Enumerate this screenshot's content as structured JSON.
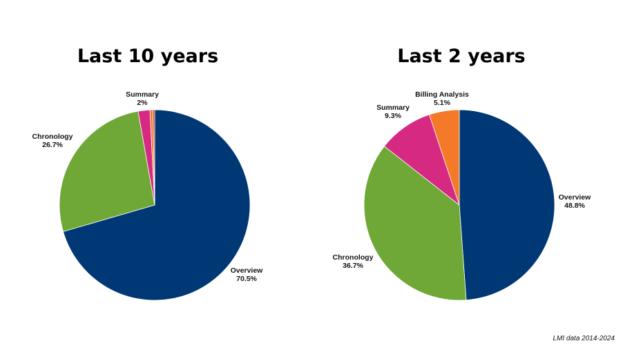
{
  "chart_data": [
    {
      "type": "pie",
      "title": "Last 10 years",
      "slices": [
        {
          "label": "Overview",
          "value": 70.5,
          "display": "70.5%",
          "color": "#003876",
          "show_label": true
        },
        {
          "label": "Chronology",
          "value": 26.7,
          "display": "26.7%",
          "color": "#6fa837",
          "show_label": true
        },
        {
          "label": "Summary",
          "value": 2.0,
          "display": "2%",
          "color": "#d62a82",
          "show_label": true
        },
        {
          "label": "",
          "value": 0.5,
          "display": "",
          "color": "#f47a2a",
          "show_label": false
        },
        {
          "label": "",
          "value": 0.3,
          "display": "",
          "color": "#c0392b",
          "show_label": false
        }
      ]
    },
    {
      "type": "pie",
      "title": "Last 2 years",
      "slices": [
        {
          "label": "Overview",
          "value": 48.8,
          "display": "48.8%",
          "color": "#003876",
          "show_label": true
        },
        {
          "label": "Chronology",
          "value": 36.7,
          "display": "36.7%",
          "color": "#6fa837",
          "show_label": true
        },
        {
          "label": "Summary",
          "value": 9.3,
          "display": "9.3%",
          "color": "#d62a82",
          "show_label": true
        },
        {
          "label": "Billing Analysis",
          "value": 5.1,
          "display": "5.1%",
          "color": "#f47a2a",
          "show_label": true
        }
      ]
    }
  ],
  "footnote": "LMI data 2014-2024"
}
